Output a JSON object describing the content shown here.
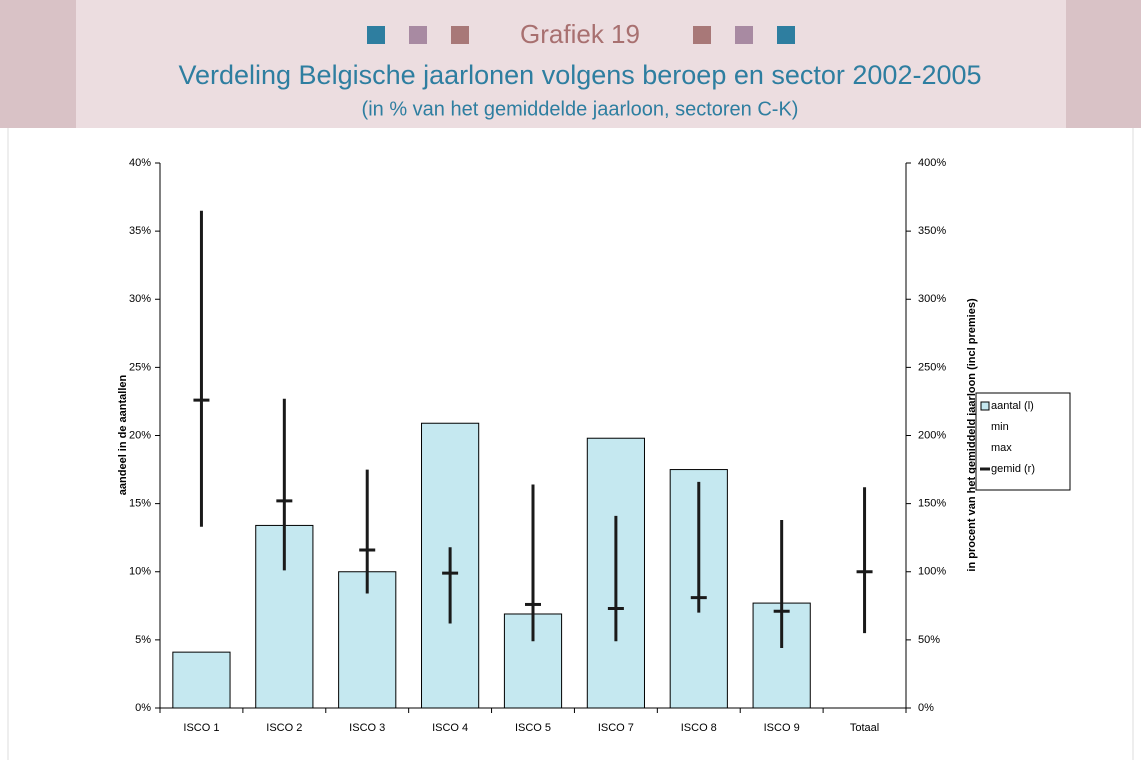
{
  "chart_data": {
    "type": "bar",
    "label": "Grafiek 19",
    "title": "Verdeling Belgische jaarlonen volgens beroep en sector 2002-2005",
    "subtitle": "(in % van het gemiddelde jaarloon, sectoren C-K)",
    "ylabel": "aandeel in de aantallen",
    "y2label": "in procent van het gemiddeld jaarloon (incl premies)",
    "categories": [
      "ISCO 1",
      "ISCO 2",
      "ISCO 3",
      "ISCO 4",
      "ISCO 5",
      "ISCO 7",
      "ISCO 8",
      "ISCO 9",
      "Totaal"
    ],
    "series": [
      {
        "name": "aantal (l)",
        "type": "bar",
        "color": "#c5e8f0",
        "axis": "y",
        "values": [
          4.1,
          13.4,
          10.0,
          20.9,
          6.9,
          19.8,
          17.5,
          7.7,
          null
        ]
      },
      {
        "name": "min",
        "type": "range-low",
        "color": "#1a1a1a",
        "axis": "y2",
        "values": [
          133,
          101,
          84,
          62,
          49,
          49,
          70,
          44,
          55
        ]
      },
      {
        "name": "max",
        "type": "range-high",
        "color": "#1a1a1a",
        "axis": "y2",
        "values": [
          365,
          227,
          175,
          118,
          164,
          141,
          166,
          138,
          162
        ]
      },
      {
        "name": "gemid (r)",
        "type": "marker",
        "color": "#1a1a1a",
        "axis": "y2",
        "values": [
          226,
          152,
          116,
          99,
          76,
          73,
          81,
          71,
          100
        ]
      }
    ],
    "ylim": [
      0,
      40
    ],
    "yticks": [
      {
        "value": 0,
        "label": "0%"
      },
      {
        "value": 5,
        "label": "5%"
      },
      {
        "value": 10,
        "label": "10%"
      },
      {
        "value": 15,
        "label": "15%"
      },
      {
        "value": 20,
        "label": "20%"
      },
      {
        "value": 25,
        "label": "25%"
      },
      {
        "value": 30,
        "label": "30%"
      },
      {
        "value": 35,
        "label": "35%"
      },
      {
        "value": 40,
        "label": "40%"
      }
    ],
    "y2lim": [
      0,
      400
    ],
    "y2ticks": [
      {
        "value": 0,
        "label": "0%"
      },
      {
        "value": 50,
        "label": "50%"
      },
      {
        "value": 100,
        "label": "100%"
      },
      {
        "value": 150,
        "label": "150%"
      },
      {
        "value": 200,
        "label": "200%"
      },
      {
        "value": 250,
        "label": "250%"
      },
      {
        "value": 300,
        "label": "300%"
      },
      {
        "value": 350,
        "label": "350%"
      },
      {
        "value": 400,
        "label": "400%"
      }
    ],
    "grid": false,
    "legend": "right"
  }
}
